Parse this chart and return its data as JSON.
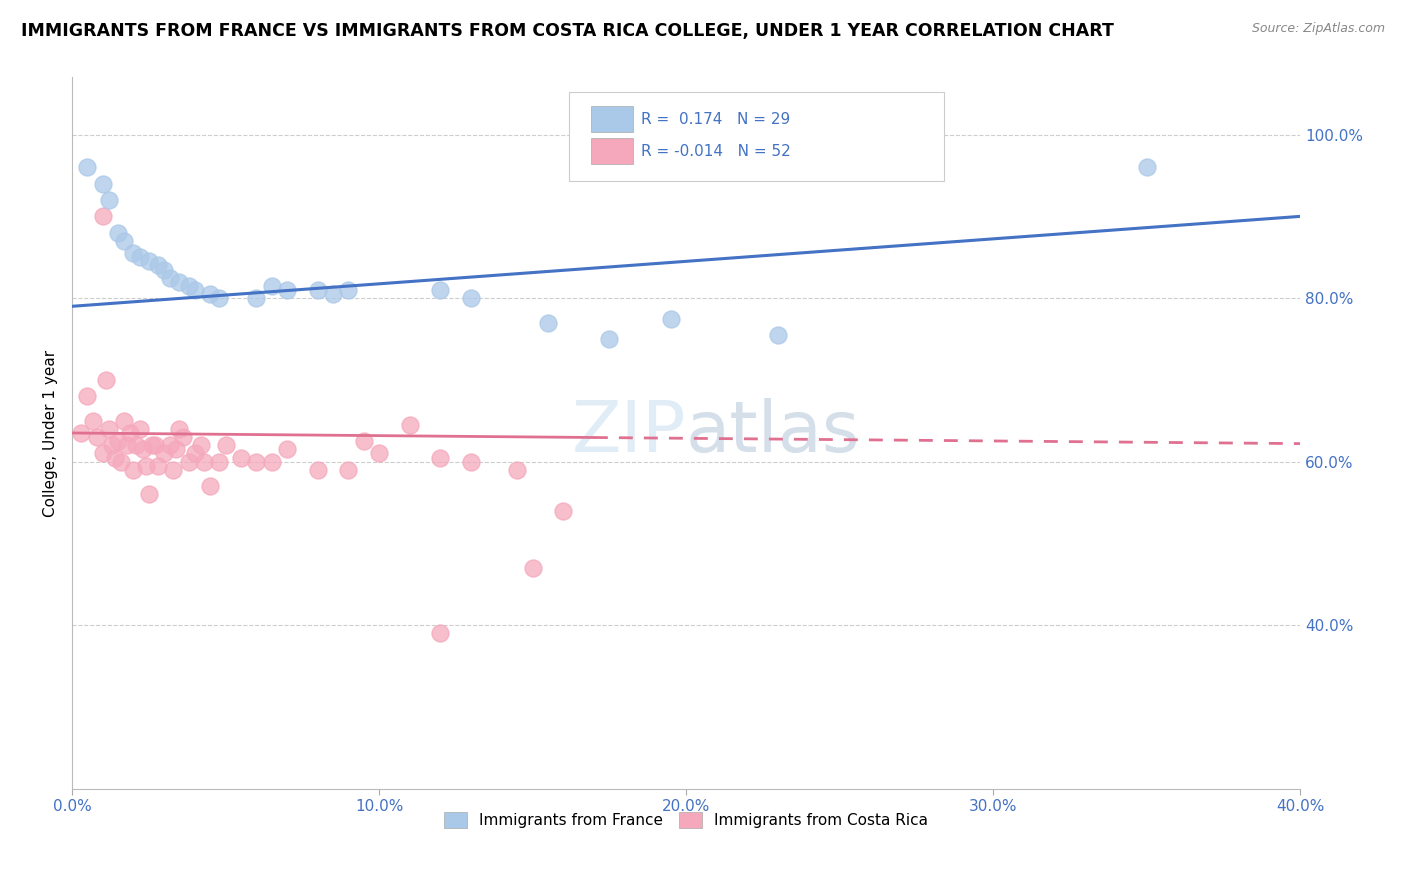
{
  "title": "IMMIGRANTS FROM FRANCE VS IMMIGRANTS FROM COSTA RICA COLLEGE, UNDER 1 YEAR CORRELATION CHART",
  "source": "Source: ZipAtlas.com",
  "xlabel": "",
  "ylabel": "College, Under 1 year",
  "xlim": [
    0.0,
    0.4
  ],
  "ylim": [
    0.2,
    1.07
  ],
  "xtick_values": [
    0.0,
    0.1,
    0.2,
    0.3,
    0.4
  ],
  "ytick_values": [
    0.4,
    0.6,
    0.8,
    1.0
  ],
  "france_R": 0.174,
  "france_N": 29,
  "costarica_R": -0.014,
  "costarica_N": 52,
  "france_color": "#aac8e8",
  "costarica_color": "#f5a8bc",
  "france_line_color": "#4472C4",
  "costarica_line_color": "#e07090",
  "grid_color": "#c8c8c8",
  "france_line_y0": 0.79,
  "france_line_y1": 0.9,
  "costarica_line_y0": 0.635,
  "costarica_line_y1": 0.622,
  "france_points": [
    [
      0.005,
      0.96
    ],
    [
      0.01,
      0.94
    ],
    [
      0.012,
      0.92
    ],
    [
      0.015,
      0.88
    ],
    [
      0.017,
      0.87
    ],
    [
      0.02,
      0.855
    ],
    [
      0.022,
      0.85
    ],
    [
      0.025,
      0.845
    ],
    [
      0.028,
      0.84
    ],
    [
      0.03,
      0.835
    ],
    [
      0.032,
      0.825
    ],
    [
      0.035,
      0.82
    ],
    [
      0.038,
      0.815
    ],
    [
      0.04,
      0.81
    ],
    [
      0.045,
      0.805
    ],
    [
      0.048,
      0.8
    ],
    [
      0.06,
      0.8
    ],
    [
      0.065,
      0.815
    ],
    [
      0.07,
      0.81
    ],
    [
      0.08,
      0.81
    ],
    [
      0.085,
      0.805
    ],
    [
      0.09,
      0.81
    ],
    [
      0.12,
      0.81
    ],
    [
      0.13,
      0.8
    ],
    [
      0.155,
      0.77
    ],
    [
      0.175,
      0.75
    ],
    [
      0.195,
      0.775
    ],
    [
      0.23,
      0.755
    ],
    [
      0.35,
      0.96
    ]
  ],
  "costarica_points": [
    [
      0.003,
      0.635
    ],
    [
      0.005,
      0.68
    ],
    [
      0.007,
      0.65
    ],
    [
      0.008,
      0.63
    ],
    [
      0.01,
      0.61
    ],
    [
      0.011,
      0.7
    ],
    [
      0.012,
      0.64
    ],
    [
      0.013,
      0.62
    ],
    [
      0.014,
      0.605
    ],
    [
      0.015,
      0.625
    ],
    [
      0.016,
      0.6
    ],
    [
      0.017,
      0.65
    ],
    [
      0.018,
      0.62
    ],
    [
      0.019,
      0.635
    ],
    [
      0.02,
      0.59
    ],
    [
      0.021,
      0.62
    ],
    [
      0.022,
      0.64
    ],
    [
      0.023,
      0.615
    ],
    [
      0.024,
      0.595
    ],
    [
      0.025,
      0.56
    ],
    [
      0.026,
      0.62
    ],
    [
      0.027,
      0.62
    ],
    [
      0.028,
      0.595
    ],
    [
      0.03,
      0.61
    ],
    [
      0.032,
      0.62
    ],
    [
      0.033,
      0.59
    ],
    [
      0.034,
      0.615
    ],
    [
      0.035,
      0.64
    ],
    [
      0.036,
      0.63
    ],
    [
      0.038,
      0.6
    ],
    [
      0.04,
      0.61
    ],
    [
      0.042,
      0.62
    ],
    [
      0.043,
      0.6
    ],
    [
      0.045,
      0.57
    ],
    [
      0.048,
      0.6
    ],
    [
      0.05,
      0.62
    ],
    [
      0.055,
      0.605
    ],
    [
      0.06,
      0.6
    ],
    [
      0.065,
      0.6
    ],
    [
      0.07,
      0.615
    ],
    [
      0.08,
      0.59
    ],
    [
      0.09,
      0.59
    ],
    [
      0.095,
      0.625
    ],
    [
      0.1,
      0.61
    ],
    [
      0.11,
      0.645
    ],
    [
      0.12,
      0.605
    ],
    [
      0.13,
      0.6
    ],
    [
      0.145,
      0.59
    ],
    [
      0.15,
      0.47
    ],
    [
      0.16,
      0.54
    ],
    [
      0.01,
      0.9
    ],
    [
      0.12,
      0.39
    ]
  ]
}
